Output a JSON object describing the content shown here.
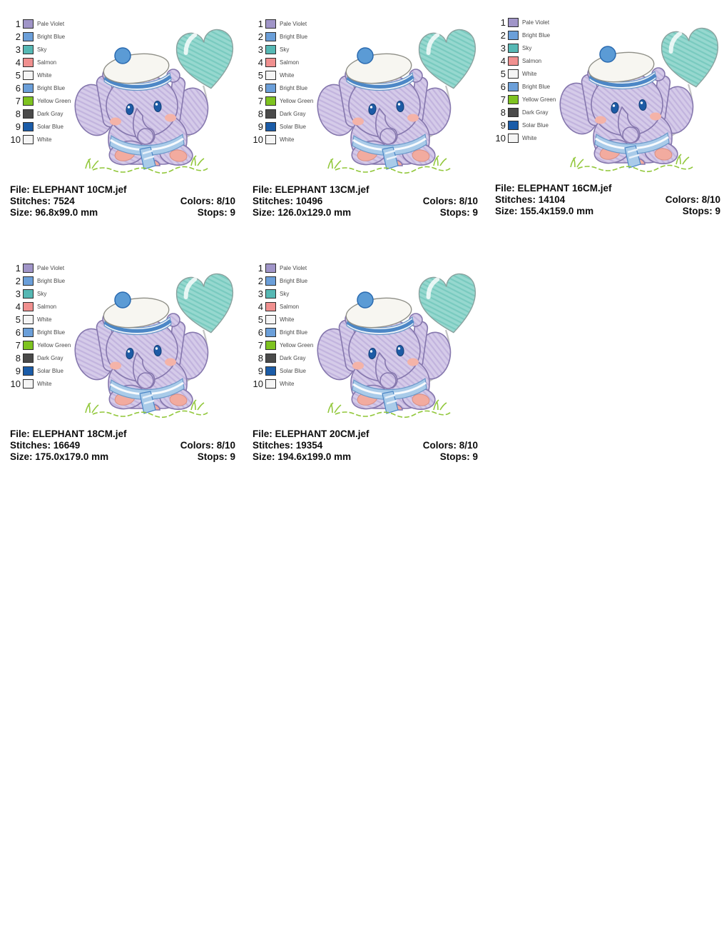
{
  "thread_colors": {
    "labels": [
      "Pale Violet",
      "Bright Blue",
      "Sky",
      "Salmon",
      "White",
      "Bright Blue",
      "Yellow Green",
      "Dark Gray",
      "Solar Blue",
      "White"
    ],
    "swatches": [
      "#a095c8",
      "#6b9fd9",
      "#56b8b4",
      "#f0908f",
      "#f5f5f5",
      "#6b9fd9",
      "#7ec320",
      "#4a4a4a",
      "#1b5ca8",
      "#f5f5f5"
    ]
  },
  "panels": [
    {
      "file": "File: ELEPHANT 10CM.jef",
      "stitches": "Stitches: 7524",
      "colors": "Colors: 8/10",
      "size": "Size: 96.8x99.0 mm",
      "stops": "Stops: 9"
    },
    {
      "file": "File: ELEPHANT 13CM.jef",
      "stitches": "Stitches: 10496",
      "colors": "Colors: 8/10",
      "size": "Size: 126.0x129.0 mm",
      "stops": "Stops: 9"
    },
    {
      "file": "File: ELEPHANT 16CM.jef",
      "stitches": "Stitches: 14104",
      "colors": "Colors: 8/10",
      "size": "Size: 155.4x159.0 mm",
      "stops": "Stops: 9"
    },
    {
      "file": "File: ELEPHANT 18CM.jef",
      "stitches": "Stitches: 16649",
      "colors": "Colors: 8/10",
      "size": "Size: 175.0x179.0 mm",
      "stops": "Stops: 9"
    },
    {
      "file": "File: ELEPHANT 20CM.jef",
      "stitches": "Stitches: 19354",
      "colors": "Colors: 8/10",
      "size": "Size: 194.6x199.0 mm",
      "stops": "Stops: 9"
    }
  ],
  "artwork": {
    "subject": "baby elephant with sailor hat holding trunk, heart balloon on string, grass",
    "colors": {
      "body": "#d3c9e8",
      "body_outline": "#8577ad",
      "balloon": "#8fd6cc",
      "balloon_outline": "#8aa19e",
      "hat": "#f7f6f1",
      "hat_band_stripe": "#4c87c6",
      "pompom": "#5b9bd5",
      "collar": "#a9cbe9",
      "eyes": "#1d5ba5",
      "cheeks_feet": "#f2ab9f",
      "grass": "#93c83d",
      "string": "#c4c4c4"
    }
  }
}
